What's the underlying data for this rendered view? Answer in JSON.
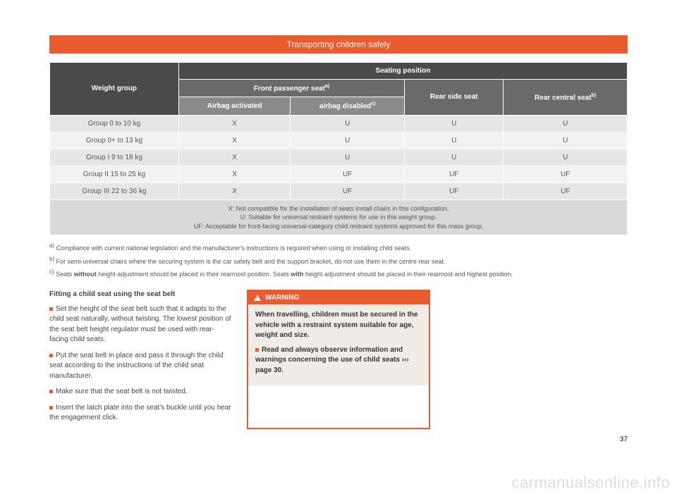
{
  "colors": {
    "accent": "#ea5b30",
    "hdr_dark": "#4a4a4a",
    "hdr_mid": "#6a6a6a",
    "hdr_lt": "#8a8a8a",
    "row_a": "#e6e6e6",
    "row_b": "#f2f2f2",
    "legend_bg": "#d9d9d9",
    "warning_body_bg": "#f2ece7",
    "text": "#555555",
    "page_bg": "#ffffff"
  },
  "title": "Transporting children safely",
  "table": {
    "header": {
      "weight_group": "Weight group",
      "seating_position": "Seating position",
      "front_passenger": "Front passenger seat",
      "front_passenger_sup": "a)",
      "rear_side": "Rear side seat",
      "rear_central": "Rear central seat",
      "rear_central_sup": "b)",
      "airbag_activated": "Airbag activated",
      "airbag_disabled": "airbag disabled",
      "airbag_disabled_sup": "c)"
    },
    "rows": [
      {
        "label": "Group 0 to 10 kg",
        "c1": "X",
        "c2": "U",
        "c3": "U",
        "c4": "U"
      },
      {
        "label": "Group 0+ to 13 kg",
        "c1": "X",
        "c2": "U",
        "c3": "U",
        "c4": "U"
      },
      {
        "label": "Group I 9 to 18 kg",
        "c1": "X",
        "c2": "U",
        "c3": "U",
        "c4": "U"
      },
      {
        "label": "Group II 15 to 25 kg",
        "c1": "X",
        "c2": "UF",
        "c3": "UF",
        "c4": "UF"
      },
      {
        "label": "Group III 22 to 36 kg",
        "c1": "X",
        "c2": "UF",
        "c3": "UF",
        "c4": "UF"
      }
    ],
    "legend": {
      "x": "X: Not compatible for the installation of seats install chairs in this configuration.",
      "u": "U: Suitable for universal restraint systems for use in this weight group.",
      "uf": "UF: Acceptable for front-facing universal-category child restraint systems approved for this mass group."
    }
  },
  "footnotes": {
    "a": "Compliance with current national legislation and the manufacturer's instructions is required when using or installing child seats.",
    "b": "For semi-universal chairs where the securing system is the car safety belt and the support bracket, do not use them in the centre rear seat.",
    "c_pre": "Seats ",
    "c_b1": "without",
    "c_mid": " height adjustment should be placed in their rearmost position. Seats ",
    "c_b2": "with",
    "c_post": " height adjustment should be placed in their rearmost and highest position."
  },
  "left_column": {
    "subtitle": "Fitting a child seat using the seat belt",
    "p1": "Set the height of the seat belt such that it adapts to the child seat naturally, without twisting. The lowest position of the seat belt height regulator must be used with rear-facing child seats.",
    "p2": "Put the seat belt in place and pass it through the child seat according to the instructions of the child seat manufacturer.",
    "p3": "Make sure that the seat belt is not twisted.",
    "p4": "Insert the latch plate into the seat's buckle until you hear the engagement click."
  },
  "warning": {
    "label": "WARNING",
    "p1": "When travelling, children must be secured in the vehicle with a restraint system suitable for age, weight and size.",
    "p2_pre": "Read and always observe information and warnings concerning the use of child seats ››› ",
    "p2_post": "page 30."
  },
  "page_number": "37",
  "watermark": "carmanualsonline.info"
}
